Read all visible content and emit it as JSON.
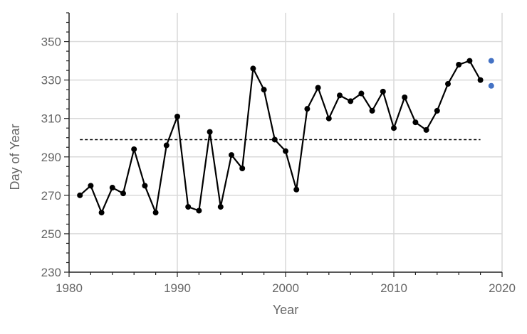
{
  "chart_data": {
    "type": "line",
    "xlabel": "Year",
    "ylabel": "Day of Year",
    "xlim": [
      1980,
      2020
    ],
    "ylim": [
      230,
      365
    ],
    "xticks": [
      1980,
      1990,
      2000,
      2010,
      2020
    ],
    "yticks": [
      230,
      250,
      270,
      290,
      310,
      330,
      350
    ],
    "grid": true,
    "series": [
      {
        "color": "#000000",
        "x": [
          1981,
          1982,
          1983,
          1984,
          1985,
          1986,
          1987,
          1988,
          1989,
          1990,
          1991,
          1992,
          1993,
          1994,
          1995,
          1996,
          1997,
          1998,
          1999,
          2000,
          2001,
          2002,
          2003,
          2004,
          2005,
          2006,
          2007,
          2008,
          2009,
          2010,
          2011,
          2012,
          2013,
          2014,
          2015,
          2016,
          2017,
          2018
        ],
        "y": [
          270,
          275,
          261,
          274,
          271,
          294,
          275,
          261,
          296,
          311,
          264,
          262,
          303,
          264,
          291,
          284,
          336,
          325,
          299,
          293,
          273,
          315,
          326,
          310,
          322,
          319,
          323,
          314,
          324,
          305,
          321,
          308,
          304,
          314,
          328,
          338,
          340,
          330
        ]
      },
      {
        "color": "#4472c4",
        "x": [
          2019,
          2019
        ],
        "y": [
          340,
          327
        ]
      }
    ],
    "reference_line": {
      "y": 299,
      "x_range": [
        1981,
        2018
      ],
      "style": "dashed",
      "color": "#000000"
    }
  }
}
